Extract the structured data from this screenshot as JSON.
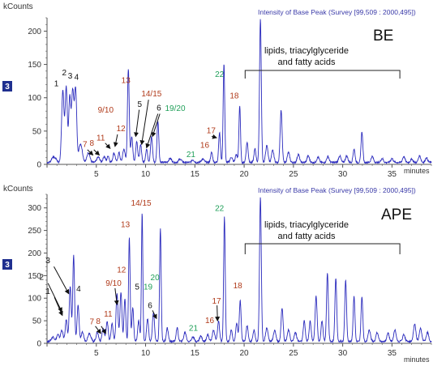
{
  "colors": {
    "trace": "#2b2bbd",
    "axis": "#555555",
    "header": "#3a3aa8",
    "label_black": "#111111",
    "label_brown": "#b03a1a",
    "label_green": "#21a05a",
    "badge_bg": "#1f2f8f",
    "badge_fg": "#ffffff"
  },
  "chart_data": [
    {
      "type": "line",
      "panel": "BE",
      "title": "BE",
      "header": "Intensity of Base Peak (Survey [99,509 : 2000,495])",
      "ylabel": "kCounts",
      "xlabel": "minutes",
      "badge": "3",
      "xlim": [
        0,
        39
      ],
      "ylim": [
        0,
        220
      ],
      "xticks": [
        "5",
        "10",
        "15",
        "20",
        "25",
        "30",
        "35"
      ],
      "yticks": [
        "0",
        "50",
        "100",
        "150",
        "200"
      ],
      "annotation": "lipids, triacylglyceride and fatty acids",
      "bracket_x": [
        20.1,
        35.8
      ],
      "peaks": [
        [
          0.6,
          8,
          0.15
        ],
        [
          0.9,
          5,
          0.12
        ],
        [
          1.6,
          108,
          0.12
        ],
        [
          1.95,
          113,
          0.11
        ],
        [
          2.3,
          97,
          0.1
        ],
        [
          2.6,
          108,
          0.12
        ],
        [
          2.9,
          109,
          0.11
        ],
        [
          3.4,
          28,
          0.18
        ],
        [
          4.2,
          15,
          0.15
        ],
        [
          5.2,
          8,
          0.15
        ],
        [
          5.8,
          9,
          0.12
        ],
        [
          6.2,
          10,
          0.1
        ],
        [
          6.8,
          14,
          0.12
        ],
        [
          7.3,
          15,
          0.1
        ],
        [
          7.8,
          20,
          0.12
        ],
        [
          8.25,
          140,
          0.09
        ],
        [
          8.6,
          38,
          0.1
        ],
        [
          9.1,
          32,
          0.1
        ],
        [
          9.5,
          26,
          0.1
        ],
        [
          10.1,
          20,
          0.1
        ],
        [
          10.6,
          38,
          0.1
        ],
        [
          11.25,
          62,
          0.09
        ],
        [
          12.5,
          6,
          0.15
        ],
        [
          13.5,
          5,
          0.15
        ],
        [
          14.8,
          4,
          0.12
        ],
        [
          15.8,
          5,
          0.15
        ],
        [
          16.7,
          15,
          0.1
        ],
        [
          17.5,
          45,
          0.09
        ],
        [
          17.95,
          148,
          0.08
        ],
        [
          18.7,
          8,
          0.12
        ],
        [
          19.2,
          12,
          0.1
        ],
        [
          19.55,
          85,
          0.08
        ],
        [
          20.3,
          30,
          0.1
        ],
        [
          21.1,
          20,
          0.1
        ],
        [
          21.65,
          215,
          0.09
        ],
        [
          22.3,
          25,
          0.12
        ],
        [
          22.9,
          18,
          0.12
        ],
        [
          23.75,
          78,
          0.1
        ],
        [
          24.5,
          15,
          0.12
        ],
        [
          25.5,
          12,
          0.12
        ],
        [
          26.5,
          10,
          0.12
        ],
        [
          27.5,
          8,
          0.12
        ],
        [
          28.5,
          9,
          0.12
        ],
        [
          29.7,
          10,
          0.12
        ],
        [
          30.4,
          10,
          0.12
        ],
        [
          31.15,
          20,
          0.1
        ],
        [
          31.95,
          46,
          0.09
        ],
        [
          33.0,
          9,
          0.12
        ],
        [
          34.0,
          6,
          0.12
        ],
        [
          35.0,
          6,
          0.12
        ],
        [
          36.2,
          9,
          0.12
        ],
        [
          37.0,
          5,
          0.12
        ],
        [
          37.8,
          10,
          0.12
        ],
        [
          38.5,
          7,
          0.12
        ]
      ],
      "labels": [
        {
          "text": "1",
          "cls": "black",
          "x": 0.95,
          "y": 117
        },
        {
          "text": "2",
          "cls": "black",
          "x": 1.75,
          "y": 134
        },
        {
          "text": "3",
          "cls": "black",
          "x": 2.35,
          "y": 129
        },
        {
          "text": "4",
          "cls": "black",
          "x": 3.0,
          "y": 127
        },
        {
          "text": "7",
          "cls": "brown",
          "x": 3.85,
          "y": 26
        },
        {
          "text": "8",
          "cls": "brown",
          "x": 4.55,
          "y": 28
        },
        {
          "text": "9/10",
          "cls": "brown",
          "x": 5.95,
          "y": 78
        },
        {
          "text": "11",
          "cls": "brown",
          "x": 5.45,
          "y": 36
        },
        {
          "text": "12",
          "cls": "brown",
          "x": 7.5,
          "y": 50
        },
        {
          "text": "13",
          "cls": "brown",
          "x": 8.0,
          "y": 122
        },
        {
          "text": "14/15",
          "cls": "brown",
          "x": 10.6,
          "y": 102
        },
        {
          "text": "5",
          "cls": "black",
          "x": 9.4,
          "y": 86
        },
        {
          "text": "6",
          "cls": "black",
          "x": 11.35,
          "y": 81
        },
        {
          "text": "19/20",
          "cls": "green",
          "x": 13.0,
          "y": 80
        },
        {
          "text": "21",
          "cls": "green",
          "x": 14.6,
          "y": 11
        },
        {
          "text": "16",
          "cls": "brown",
          "x": 16.0,
          "y": 25
        },
        {
          "text": "17",
          "cls": "brown",
          "x": 16.65,
          "y": 47
        },
        {
          "text": "22",
          "cls": "green",
          "x": 17.5,
          "y": 131
        },
        {
          "text": "18",
          "cls": "brown",
          "x": 19.0,
          "y": 99
        }
      ],
      "arrows": [
        [
          4.1,
          22,
          4.65,
          14
        ],
        [
          4.75,
          22,
          5.3,
          14
        ],
        [
          5.9,
          32,
          6.4,
          24
        ],
        [
          7.15,
          45,
          6.9,
          27
        ],
        [
          9.35,
          82,
          9.0,
          42
        ],
        [
          10.3,
          97,
          9.6,
          30
        ],
        [
          11.25,
          76,
          10.1,
          25
        ],
        [
          11.45,
          76,
          10.7,
          42
        ],
        [
          16.7,
          42,
          17.2,
          40
        ]
      ]
    },
    {
      "type": "line",
      "panel": "APE",
      "title": "APE",
      "header": "Intensity of Base Peak (Survey [99,509 : 2000,495])",
      "ylabel": "kCounts",
      "xlabel": "minutes",
      "badge": "3",
      "xlim": [
        0,
        39
      ],
      "ylim": [
        0,
        330
      ],
      "xticks": [
        "5",
        "10",
        "15",
        "20",
        "25",
        "30",
        "35"
      ],
      "yticks": [
        "0",
        "50",
        "100",
        "150",
        "200",
        "250",
        "300"
      ],
      "annotation": "lipids, triacylglyceride and fatty acids",
      "bracket_x": [
        20.1,
        35.8
      ],
      "peaks": [
        [
          0.6,
          10,
          0.15
        ],
        [
          1.1,
          15,
          0.12
        ],
        [
          1.5,
          25,
          0.12
        ],
        [
          1.95,
          48,
          0.1
        ],
        [
          2.35,
          120,
          0.1
        ],
        [
          2.7,
          190,
          0.09
        ],
        [
          3.15,
          80,
          0.1
        ],
        [
          3.6,
          20,
          0.12
        ],
        [
          4.3,
          18,
          0.15
        ],
        [
          5.1,
          20,
          0.12
        ],
        [
          5.7,
          28,
          0.12
        ],
        [
          6.1,
          45,
          0.1
        ],
        [
          6.6,
          40,
          0.1
        ],
        [
          7.1,
          105,
          0.1
        ],
        [
          7.5,
          108,
          0.1
        ],
        [
          7.9,
          95,
          0.09
        ],
        [
          8.35,
          230,
          0.08
        ],
        [
          8.7,
          75,
          0.09
        ],
        [
          9.3,
          45,
          0.1
        ],
        [
          9.65,
          285,
          0.07
        ],
        [
          10.2,
          50,
          0.1
        ],
        [
          10.8,
          65,
          0.1
        ],
        [
          11.5,
          250,
          0.08
        ],
        [
          12.2,
          30,
          0.1
        ],
        [
          13.2,
          30,
          0.1
        ],
        [
          14.0,
          20,
          0.12
        ],
        [
          14.8,
          10,
          0.12
        ],
        [
          15.6,
          12,
          0.12
        ],
        [
          16.3,
          15,
          0.12
        ],
        [
          16.9,
          25,
          0.12
        ],
        [
          17.4,
          45,
          0.1
        ],
        [
          18.0,
          275,
          0.08
        ],
        [
          18.7,
          25,
          0.1
        ],
        [
          19.25,
          40,
          0.1
        ],
        [
          19.6,
          90,
          0.09
        ],
        [
          20.3,
          35,
          0.1
        ],
        [
          21.0,
          25,
          0.1
        ],
        [
          21.65,
          320,
          0.09
        ],
        [
          22.3,
          30,
          0.12
        ],
        [
          23.1,
          25,
          0.12
        ],
        [
          23.85,
          75,
          0.1
        ],
        [
          24.5,
          25,
          0.12
        ],
        [
          25.2,
          20,
          0.12
        ],
        [
          26.1,
          45,
          0.1
        ],
        [
          26.7,
          45,
          0.1
        ],
        [
          27.3,
          100,
          0.1
        ],
        [
          27.9,
          45,
          0.1
        ],
        [
          28.45,
          150,
          0.09
        ],
        [
          29.3,
          140,
          0.09
        ],
        [
          30.3,
          135,
          0.09
        ],
        [
          31.15,
          100,
          0.09
        ],
        [
          31.95,
          100,
          0.09
        ],
        [
          32.7,
          25,
          0.12
        ],
        [
          33.5,
          20,
          0.12
        ],
        [
          34.6,
          18,
          0.12
        ],
        [
          35.3,
          25,
          0.12
        ],
        [
          36.2,
          15,
          0.12
        ],
        [
          37.3,
          38,
          0.12
        ],
        [
          37.9,
          28,
          0.12
        ],
        [
          38.6,
          20,
          0.12
        ]
      ],
      "labels": [
        {
          "text": "3",
          "cls": "black",
          "x": 0.1,
          "y": 178
        },
        {
          "text": "2",
          "cls": "black",
          "x": -0.55,
          "y": 141
        },
        {
          "text": "1",
          "cls": "black",
          "x": 0.1,
          "y": 109
        },
        {
          "text": "4",
          "cls": "black",
          "x": 3.2,
          "y": 115
        },
        {
          "text": "7",
          "cls": "brown",
          "x": 4.55,
          "y": 42
        },
        {
          "text": "8",
          "cls": "brown",
          "x": 5.2,
          "y": 43
        },
        {
          "text": "11",
          "cls": "brown",
          "x": 6.2,
          "y": 59
        },
        {
          "text": "9/10",
          "cls": "brown",
          "x": 6.75,
          "y": 127
        },
        {
          "text": "12",
          "cls": "brown",
          "x": 7.55,
          "y": 157
        },
        {
          "text": "13",
          "cls": "brown",
          "x": 7.95,
          "y": 257
        },
        {
          "text": "14/15",
          "cls": "brown",
          "x": 9.55,
          "y": 305
        },
        {
          "text": "5",
          "cls": "black",
          "x": 9.15,
          "y": 119
        },
        {
          "text": "19",
          "cls": "green",
          "x": 10.25,
          "y": 119
        },
        {
          "text": "20",
          "cls": "green",
          "x": 10.95,
          "y": 140
        },
        {
          "text": "6",
          "cls": "black",
          "x": 10.45,
          "y": 78
        },
        {
          "text": "21",
          "cls": "green",
          "x": 14.85,
          "y": 28
        },
        {
          "text": "16",
          "cls": "brown",
          "x": 16.5,
          "y": 45
        },
        {
          "text": "17",
          "cls": "brown",
          "x": 17.2,
          "y": 88
        },
        {
          "text": "22",
          "cls": "green",
          "x": 17.5,
          "y": 293
        },
        {
          "text": "18",
          "cls": "brown",
          "x": 19.35,
          "y": 122
        }
      ],
      "arrows": [
        [
          0.7,
          170,
          2.2,
          110
        ],
        [
          0.1,
          133,
          1.5,
          70
        ],
        [
          0.75,
          102,
          1.55,
          62
        ],
        [
          4.9,
          38,
          5.45,
          22
        ],
        [
          5.5,
          38,
          5.95,
          22
        ],
        [
          6.9,
          122,
          7.1,
          86
        ],
        [
          10.7,
          73,
          11.1,
          55
        ],
        [
          17.25,
          84,
          17.3,
          50
        ]
      ]
    }
  ]
}
